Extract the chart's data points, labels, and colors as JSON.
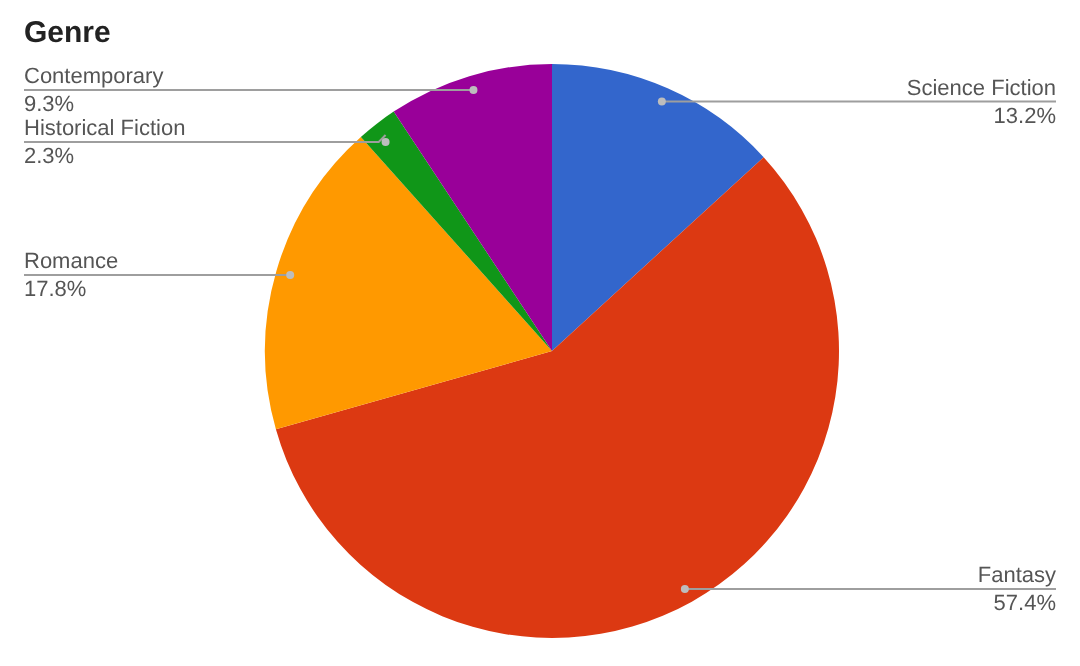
{
  "chart_data": {
    "type": "pie",
    "title": "Genre",
    "categories": [
      "Science Fiction",
      "Fantasy",
      "Romance",
      "Historical Fiction",
      "Contemporary"
    ],
    "values": [
      13.2,
      57.4,
      17.8,
      2.3,
      9.3
    ],
    "value_labels": [
      "13.2%",
      "57.4%",
      "17.8%",
      "2.3%",
      "9.3%"
    ],
    "colors": [
      "#3366cc",
      "#dc3912",
      "#ff9900",
      "#109618",
      "#990099"
    ],
    "legend": false
  }
}
